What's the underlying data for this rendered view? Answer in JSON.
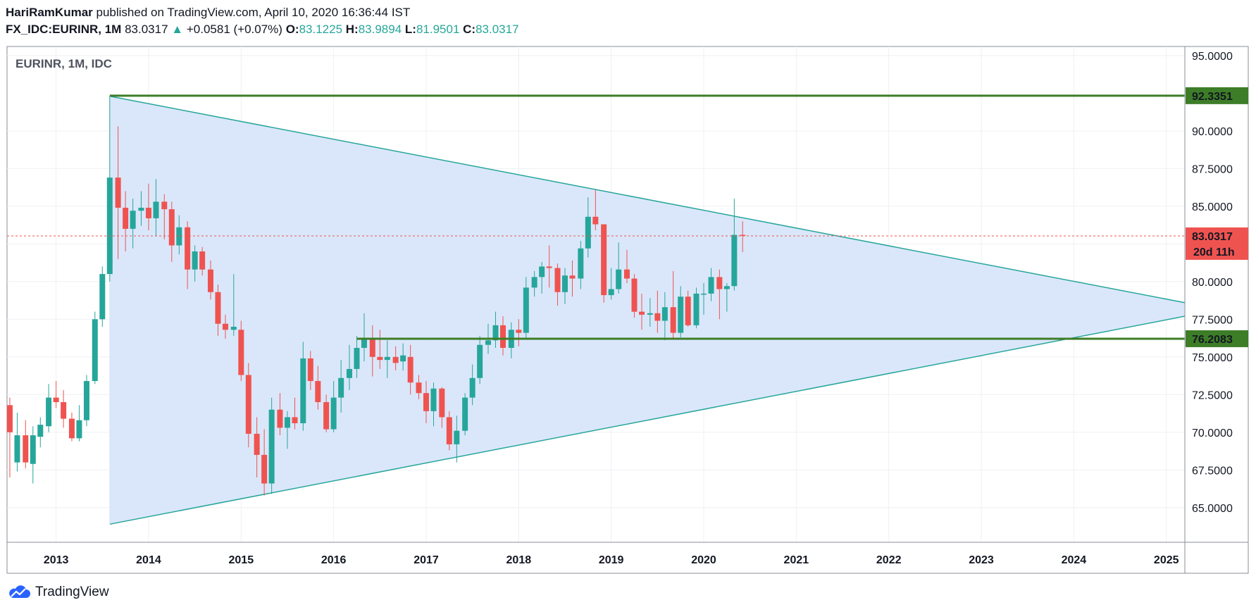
{
  "header": {
    "author": "HariRamKumar",
    "published_text": "published on TradingView.com, April 10, 2020 16:36:44 IST",
    "symbol": "FX_IDC:EURINR, 1M",
    "last": "83.0317",
    "arrow": "▲",
    "change": "+0.0581 (+0.07%)",
    "o_label": "O:",
    "o_value": "83.1225",
    "h_label": "H:",
    "h_value": "83.9894",
    "l_label": "L:",
    "l_value": "81.9501",
    "c_label": "C:",
    "c_value": "83.0317"
  },
  "footer": {
    "brand": "TradingView",
    "logo_icon": "tradingview-cloud-icon"
  },
  "colors": {
    "up": "#26a69a",
    "down": "#ef5350",
    "level": "#3d7d27",
    "triangle_fill": "#d6e4fa",
    "triangle_line": "#26a69a",
    "price_line": "#ef5350"
  },
  "chart_data": {
    "type": "candlestick",
    "title": "EURINR, 1M, IDC",
    "x_ticks": [
      "2013",
      "2014",
      "2015",
      "2016",
      "2017",
      "2018",
      "2019",
      "2020",
      "2021",
      "2022",
      "2023",
      "2024",
      "2025"
    ],
    "y_ticks": [
      "65.0000",
      "67.5000",
      "70.0000",
      "72.5000",
      "75.0000",
      "77.5000",
      "80.0000",
      "82.5000",
      "85.0000",
      "87.5000",
      "90.0000",
      "95.0000"
    ],
    "ylim": [
      62.7,
      95.6
    ],
    "xlim": [
      2012.47,
      2025.2
    ],
    "grid": true,
    "current_price": {
      "value": 83.0317,
      "label": "83.0317",
      "countdown": "20d 11h"
    },
    "levels": [
      {
        "value": 92.3351,
        "label": "92.3351",
        "start": 2013.58
      },
      {
        "value": 76.2083,
        "label": "76.2083",
        "start": 2016.25
      }
    ],
    "triangle": {
      "apex_top": [
        2013.58,
        92.3
      ],
      "apex_bottom": [
        2013.58,
        63.9
      ],
      "right_top": [
        2025.2,
        78.6
      ],
      "right_bottom": [
        2025.2,
        77.7
      ]
    },
    "candles": [
      {
        "t": 2012.5,
        "o": 71.8,
        "h": 72.3,
        "l": 67.0,
        "c": 70.0
      },
      {
        "t": 2012.58,
        "o": 68.0,
        "h": 71.3,
        "l": 67.4,
        "c": 69.8
      },
      {
        "t": 2012.67,
        "o": 69.8,
        "h": 70.8,
        "l": 67.6,
        "c": 68.0
      },
      {
        "t": 2012.75,
        "o": 67.9,
        "h": 70.4,
        "l": 66.6,
        "c": 69.8
      },
      {
        "t": 2012.83,
        "o": 69.7,
        "h": 71.0,
        "l": 69.0,
        "c": 70.5
      },
      {
        "t": 2012.92,
        "o": 70.4,
        "h": 73.2,
        "l": 70.0,
        "c": 72.3
      },
      {
        "t": 2013.0,
        "o": 72.3,
        "h": 73.4,
        "l": 71.6,
        "c": 72.0
      },
      {
        "t": 2013.08,
        "o": 72.0,
        "h": 72.8,
        "l": 70.3,
        "c": 70.9
      },
      {
        "t": 2013.17,
        "o": 70.9,
        "h": 71.3,
        "l": 69.4,
        "c": 69.6
      },
      {
        "t": 2013.25,
        "o": 69.6,
        "h": 71.8,
        "l": 69.4,
        "c": 70.8
      },
      {
        "t": 2013.33,
        "o": 70.8,
        "h": 73.8,
        "l": 70.4,
        "c": 73.4
      },
      {
        "t": 2013.42,
        "o": 73.4,
        "h": 78.0,
        "l": 73.2,
        "c": 77.5
      },
      {
        "t": 2013.5,
        "o": 77.5,
        "h": 81.0,
        "l": 77.0,
        "c": 80.5
      },
      {
        "t": 2013.58,
        "o": 80.5,
        "h": 92.3,
        "l": 80.0,
        "c": 86.9
      },
      {
        "t": 2013.67,
        "o": 86.9,
        "h": 90.3,
        "l": 81.5,
        "c": 84.9
      },
      {
        "t": 2013.75,
        "o": 84.9,
        "h": 86.0,
        "l": 82.0,
        "c": 83.5
      },
      {
        "t": 2013.83,
        "o": 83.5,
        "h": 85.5,
        "l": 82.2,
        "c": 84.7
      },
      {
        "t": 2013.92,
        "o": 84.7,
        "h": 86.0,
        "l": 83.7,
        "c": 84.9
      },
      {
        "t": 2014.0,
        "o": 84.9,
        "h": 86.5,
        "l": 83.4,
        "c": 84.2
      },
      {
        "t": 2014.08,
        "o": 84.2,
        "h": 86.8,
        "l": 83.0,
        "c": 85.3
      },
      {
        "t": 2014.17,
        "o": 85.3,
        "h": 85.8,
        "l": 82.8,
        "c": 84.8
      },
      {
        "t": 2014.25,
        "o": 84.8,
        "h": 85.3,
        "l": 81.3,
        "c": 82.4
      },
      {
        "t": 2014.33,
        "o": 82.4,
        "h": 84.4,
        "l": 81.8,
        "c": 83.6
      },
      {
        "t": 2014.42,
        "o": 83.6,
        "h": 84.0,
        "l": 79.5,
        "c": 80.8
      },
      {
        "t": 2014.5,
        "o": 80.8,
        "h": 82.4,
        "l": 80.0,
        "c": 82.0
      },
      {
        "t": 2014.58,
        "o": 82.0,
        "h": 82.3,
        "l": 80.4,
        "c": 80.8
      },
      {
        "t": 2014.67,
        "o": 80.8,
        "h": 81.4,
        "l": 78.8,
        "c": 79.3
      },
      {
        "t": 2014.75,
        "o": 79.3,
        "h": 79.8,
        "l": 76.4,
        "c": 77.2
      },
      {
        "t": 2014.83,
        "o": 77.2,
        "h": 77.8,
        "l": 76.2,
        "c": 76.8
      },
      {
        "t": 2014.92,
        "o": 76.8,
        "h": 80.5,
        "l": 76.4,
        "c": 77.0
      },
      {
        "t": 2015.0,
        "o": 76.8,
        "h": 77.4,
        "l": 73.4,
        "c": 73.8
      },
      {
        "t": 2015.08,
        "o": 73.8,
        "h": 74.6,
        "l": 69.0,
        "c": 69.9
      },
      {
        "t": 2015.17,
        "o": 69.9,
        "h": 71.0,
        "l": 67.0,
        "c": 68.5
      },
      {
        "t": 2015.25,
        "o": 68.5,
        "h": 70.2,
        "l": 65.8,
        "c": 66.6
      },
      {
        "t": 2015.33,
        "o": 66.6,
        "h": 72.3,
        "l": 65.9,
        "c": 71.5
      },
      {
        "t": 2015.42,
        "o": 71.5,
        "h": 72.6,
        "l": 69.8,
        "c": 70.3
      },
      {
        "t": 2015.5,
        "o": 70.3,
        "h": 71.4,
        "l": 68.9,
        "c": 71.0
      },
      {
        "t": 2015.58,
        "o": 71.0,
        "h": 72.3,
        "l": 70.2,
        "c": 70.6
      },
      {
        "t": 2015.67,
        "o": 70.6,
        "h": 76.0,
        "l": 70.1,
        "c": 74.9
      },
      {
        "t": 2015.75,
        "o": 74.9,
        "h": 75.4,
        "l": 72.8,
        "c": 73.4
      },
      {
        "t": 2015.83,
        "o": 73.4,
        "h": 74.4,
        "l": 71.5,
        "c": 72.0
      },
      {
        "t": 2015.92,
        "o": 72.0,
        "h": 72.5,
        "l": 70.0,
        "c": 70.2
      },
      {
        "t": 2016.0,
        "o": 70.2,
        "h": 73.4,
        "l": 70.0,
        "c": 72.3
      },
      {
        "t": 2016.08,
        "o": 72.3,
        "h": 74.8,
        "l": 71.3,
        "c": 73.6
      },
      {
        "t": 2016.17,
        "o": 73.6,
        "h": 75.8,
        "l": 72.8,
        "c": 74.2
      },
      {
        "t": 2016.25,
        "o": 74.2,
        "h": 76.4,
        "l": 73.6,
        "c": 75.6
      },
      {
        "t": 2016.33,
        "o": 75.6,
        "h": 77.9,
        "l": 74.7,
        "c": 76.2
      },
      {
        "t": 2016.42,
        "o": 76.2,
        "h": 77.1,
        "l": 73.7,
        "c": 75.0
      },
      {
        "t": 2016.5,
        "o": 75.0,
        "h": 76.8,
        "l": 74.2,
        "c": 74.8
      },
      {
        "t": 2016.58,
        "o": 74.8,
        "h": 76.1,
        "l": 73.6,
        "c": 75.0
      },
      {
        "t": 2016.67,
        "o": 75.0,
        "h": 75.7,
        "l": 74.1,
        "c": 74.6
      },
      {
        "t": 2016.75,
        "o": 74.7,
        "h": 75.9,
        "l": 74.1,
        "c": 75.1
      },
      {
        "t": 2016.83,
        "o": 75.0,
        "h": 75.8,
        "l": 72.5,
        "c": 73.3
      },
      {
        "t": 2016.92,
        "o": 73.3,
        "h": 73.8,
        "l": 72.2,
        "c": 72.6
      },
      {
        "t": 2017.0,
        "o": 72.6,
        "h": 73.4,
        "l": 70.6,
        "c": 71.4
      },
      {
        "t": 2017.08,
        "o": 71.4,
        "h": 73.3,
        "l": 70.4,
        "c": 72.9
      },
      {
        "t": 2017.17,
        "o": 72.9,
        "h": 73.0,
        "l": 70.3,
        "c": 71.0
      },
      {
        "t": 2017.25,
        "o": 71.0,
        "h": 71.4,
        "l": 68.8,
        "c": 69.2
      },
      {
        "t": 2017.33,
        "o": 69.2,
        "h": 71.1,
        "l": 68.0,
        "c": 70.1
      },
      {
        "t": 2017.42,
        "o": 70.1,
        "h": 72.6,
        "l": 69.8,
        "c": 72.3
      },
      {
        "t": 2017.5,
        "o": 72.3,
        "h": 74.5,
        "l": 71.8,
        "c": 73.6
      },
      {
        "t": 2017.58,
        "o": 73.6,
        "h": 76.4,
        "l": 73.2,
        "c": 75.8
      },
      {
        "t": 2017.67,
        "o": 75.8,
        "h": 77.2,
        "l": 75.2,
        "c": 76.1
      },
      {
        "t": 2017.75,
        "o": 76.1,
        "h": 78.0,
        "l": 75.6,
        "c": 77.1
      },
      {
        "t": 2017.83,
        "o": 77.1,
        "h": 77.7,
        "l": 75.1,
        "c": 75.6
      },
      {
        "t": 2017.92,
        "o": 75.6,
        "h": 77.3,
        "l": 74.9,
        "c": 76.8
      },
      {
        "t": 2018.0,
        "o": 76.8,
        "h": 77.5,
        "l": 75.7,
        "c": 76.6
      },
      {
        "t": 2018.08,
        "o": 76.6,
        "h": 80.3,
        "l": 76.2,
        "c": 79.6
      },
      {
        "t": 2018.17,
        "o": 79.6,
        "h": 80.7,
        "l": 79.0,
        "c": 80.3
      },
      {
        "t": 2018.25,
        "o": 80.3,
        "h": 81.3,
        "l": 79.2,
        "c": 81.0
      },
      {
        "t": 2018.33,
        "o": 81.0,
        "h": 82.4,
        "l": 79.6,
        "c": 80.9
      },
      {
        "t": 2018.42,
        "o": 80.9,
        "h": 81.2,
        "l": 78.4,
        "c": 79.3
      },
      {
        "t": 2018.5,
        "o": 79.3,
        "h": 80.9,
        "l": 78.5,
        "c": 80.4
      },
      {
        "t": 2018.58,
        "o": 80.4,
        "h": 81.4,
        "l": 79.0,
        "c": 80.2
      },
      {
        "t": 2018.67,
        "o": 80.2,
        "h": 82.7,
        "l": 79.5,
        "c": 82.2
      },
      {
        "t": 2018.75,
        "o": 82.2,
        "h": 85.6,
        "l": 81.6,
        "c": 84.3
      },
      {
        "t": 2018.83,
        "o": 84.3,
        "h": 86.1,
        "l": 83.4,
        "c": 83.8
      },
      {
        "t": 2018.92,
        "o": 83.8,
        "h": 83.6,
        "l": 78.6,
        "c": 79.1
      },
      {
        "t": 2019.0,
        "o": 79.1,
        "h": 80.9,
        "l": 78.8,
        "c": 79.5
      },
      {
        "t": 2019.08,
        "o": 79.5,
        "h": 82.6,
        "l": 79.2,
        "c": 80.8
      },
      {
        "t": 2019.17,
        "o": 80.8,
        "h": 82.1,
        "l": 79.9,
        "c": 80.2
      },
      {
        "t": 2019.25,
        "o": 80.2,
        "h": 80.5,
        "l": 77.6,
        "c": 78.0
      },
      {
        "t": 2019.33,
        "o": 78.0,
        "h": 79.2,
        "l": 76.8,
        "c": 77.8
      },
      {
        "t": 2019.42,
        "o": 77.8,
        "h": 78.9,
        "l": 77.0,
        "c": 77.9
      },
      {
        "t": 2019.5,
        "o": 77.9,
        "h": 79.4,
        "l": 76.6,
        "c": 77.4
      },
      {
        "t": 2019.58,
        "o": 77.4,
        "h": 79.3,
        "l": 76.1,
        "c": 78.3
      },
      {
        "t": 2019.67,
        "o": 78.3,
        "h": 80.7,
        "l": 76.2,
        "c": 76.6
      },
      {
        "t": 2019.75,
        "o": 76.6,
        "h": 79.7,
        "l": 76.3,
        "c": 79.0
      },
      {
        "t": 2019.83,
        "o": 79.0,
        "h": 79.4,
        "l": 77.0,
        "c": 77.1
      },
      {
        "t": 2019.92,
        "o": 77.1,
        "h": 79.6,
        "l": 76.9,
        "c": 79.2
      },
      {
        "t": 2020.0,
        "o": 79.2,
        "h": 79.9,
        "l": 77.8,
        "c": 79.2
      },
      {
        "t": 2020.08,
        "o": 79.2,
        "h": 80.9,
        "l": 78.7,
        "c": 80.3
      },
      {
        "t": 2020.17,
        "o": 80.3,
        "h": 80.8,
        "l": 77.5,
        "c": 79.5
      },
      {
        "t": 2020.25,
        "o": 79.5,
        "h": 79.9,
        "l": 78.0,
        "c": 79.7
      },
      {
        "t": 2020.33,
        "o": 79.7,
        "h": 85.5,
        "l": 79.4,
        "c": 83.1
      },
      {
        "t": 2020.42,
        "o": 83.1,
        "h": 84.0,
        "l": 81.95,
        "c": 83.03
      }
    ]
  }
}
